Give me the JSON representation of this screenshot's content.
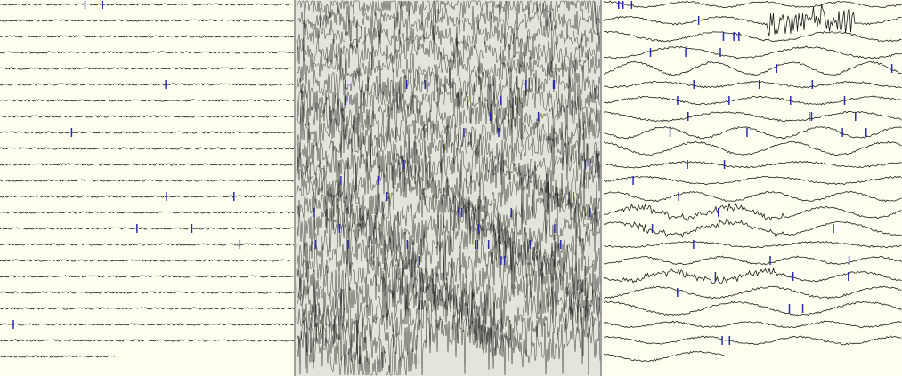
{
  "colors": {
    "background": "#fffff0",
    "trace": "#1a1a1a",
    "marker": "#2a2ab0",
    "panel_border": "#a0a0a0"
  },
  "chart_data": {
    "type": "line",
    "title": "",
    "xlabel": "",
    "ylabel": "",
    "grid": false,
    "panels": [
      {
        "name": "",
        "trace_count": 23,
        "activity": "low",
        "marker_count": 10
      },
      {
        "name": "",
        "trace_count": 23,
        "activity": "high",
        "marker_count": 40
      },
      {
        "name": "",
        "trace_count": 23,
        "activity": "moderate",
        "marker_count": 45
      }
    ]
  }
}
